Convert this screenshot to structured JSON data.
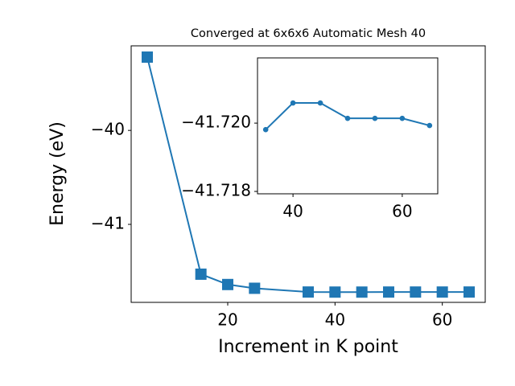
{
  "chart_data": [
    {
      "type": "line",
      "title": "Converged at 6x6x6 Automatic Mesh 40",
      "xlabel": "Increment in K point",
      "ylabel": "Energy (eV)",
      "x": [
        5,
        15,
        20,
        25,
        35,
        40,
        45,
        50,
        55,
        60,
        65
      ],
      "series": [
        {
          "color": "#1f77b4",
          "marker": "square",
          "values": [
            -39.22,
            -41.53,
            -41.64,
            -41.68,
            -41.7198,
            -41.7206,
            -41.7206,
            -41.7201,
            -41.7201,
            -41.7201,
            -41.7199
          ]
        }
      ],
      "xlim": [
        2,
        68
      ],
      "ylim": [
        -41.83,
        -39.1
      ],
      "xticks": [
        20,
        40,
        60
      ],
      "yticks": [
        {
          "value": -40,
          "label": "−40"
        },
        {
          "value": -41,
          "label": "−41"
        }
      ]
    },
    {
      "type": "line",
      "x": [
        35,
        40,
        45,
        50,
        55,
        60,
        65
      ],
      "series": [
        {
          "color": "#1f77b4",
          "marker": "circle",
          "values": [
            -41.71981,
            -41.72059,
            -41.72059,
            -41.72014,
            -41.72014,
            -41.72014,
            -41.71993
          ]
        }
      ],
      "xlim": [
        33.5,
        66.5
      ],
      "ylim": [
        -41.71793,
        -41.72191
      ],
      "xticks": [
        40,
        60
      ],
      "yticks": [
        {
          "value": -41.72,
          "label": "−41.720"
        },
        {
          "value": -41.718,
          "label": "−41.718"
        }
      ]
    }
  ]
}
